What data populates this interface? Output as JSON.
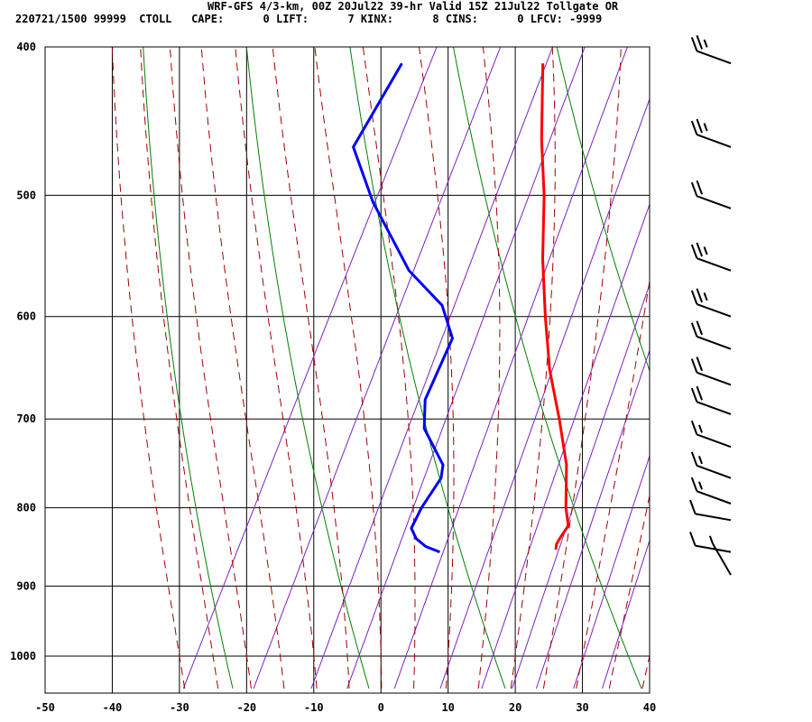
{
  "header": {
    "title": "WRF-GFS 4/3-km, 00Z 20Jul22 39-hr Valid 15Z 21Jul22 Tollgate OR",
    "info": "220721/1500 99999  CTOLL   CAPE:      0 LIFT:      7 KINX:      8 CINS:      0 LFCV: -9999"
  },
  "colors": {
    "temperature": "#ff0000",
    "dewpoint": "#0000ff",
    "dry_adiabat": "#008000",
    "moist_adiabat": "#a00000",
    "mixing_ratio": "#8020c0",
    "grid": "#000000"
  },
  "chart_data": {
    "type": "line",
    "subtype": "skew-t log-p sounding",
    "xlabel": "",
    "ylabel": "",
    "xlim": [
      -50,
      40
    ],
    "ylim": [
      1040,
      400
    ],
    "y_scale": "log",
    "x_ticks": [
      -50,
      -40,
      -30,
      -20,
      -10,
      0,
      10,
      20,
      30,
      40
    ],
    "x_tick_labels": [
      "-50",
      "-40",
      "-30",
      "-20",
      "-10",
      "0",
      "10",
      "20",
      "30",
      "40"
    ],
    "y_ticks": [
      400,
      500,
      600,
      700,
      800,
      900,
      1000
    ],
    "y_tick_labels": [
      "400",
      "500",
      "600",
      "700",
      "800",
      "900",
      "1000"
    ],
    "grid": true,
    "series": [
      {
        "key": "temperature",
        "color": "#ff0000",
        "points": [
          {
            "p": 410,
            "t": -20
          },
          {
            "p": 460,
            "t": -14.5
          },
          {
            "p": 500,
            "t": -10
          },
          {
            "p": 550,
            "t": -5.5
          },
          {
            "p": 600,
            "t": -0.8
          },
          {
            "p": 650,
            "t": 3.8
          },
          {
            "p": 700,
            "t": 8.9
          },
          {
            "p": 750,
            "t": 13.4
          },
          {
            "p": 800,
            "t": 16.5
          },
          {
            "p": 822,
            "t": 18.2
          },
          {
            "p": 835,
            "t": 17.9
          },
          {
            "p": 845,
            "t": 17.8
          },
          {
            "p": 852,
            "t": 18.1
          }
        ]
      },
      {
        "key": "dewpoint",
        "color": "#0000ff",
        "points": [
          {
            "p": 410,
            "t": -41
          },
          {
            "p": 465,
            "t": -42
          },
          {
            "p": 505,
            "t": -35
          },
          {
            "p": 560,
            "t": -24.5
          },
          {
            "p": 590,
            "t": -17
          },
          {
            "p": 620,
            "t": -13
          },
          {
            "p": 680,
            "t": -12.5
          },
          {
            "p": 710,
            "t": -10.5
          },
          {
            "p": 750,
            "t": -5
          },
          {
            "p": 765,
            "t": -4.3
          },
          {
            "p": 800,
            "t": -5
          },
          {
            "p": 825,
            "t": -5
          },
          {
            "p": 838,
            "t": -3.5
          },
          {
            "p": 848,
            "t": -1.5
          },
          {
            "p": 855,
            "t": 1
          }
        ]
      }
    ],
    "wind_barbs": [
      {
        "p": 410,
        "speed_kt": 25
      },
      {
        "p": 465,
        "speed_kt": 25
      },
      {
        "p": 510,
        "speed_kt": 20
      },
      {
        "p": 560,
        "speed_kt": 25
      },
      {
        "p": 600,
        "speed_kt": 25
      },
      {
        "p": 630,
        "speed_kt": 20
      },
      {
        "p": 665,
        "speed_kt": 20
      },
      {
        "p": 695,
        "speed_kt": 20
      },
      {
        "p": 730,
        "speed_kt": 15
      },
      {
        "p": 765,
        "speed_kt": 15
      },
      {
        "p": 795,
        "speed_kt": 15
      },
      {
        "p": 815,
        "speed_kt": 10
      },
      {
        "p": 855,
        "speed_kt": 10
      },
      {
        "p": 885,
        "speed_kt": 5
      }
    ]
  }
}
